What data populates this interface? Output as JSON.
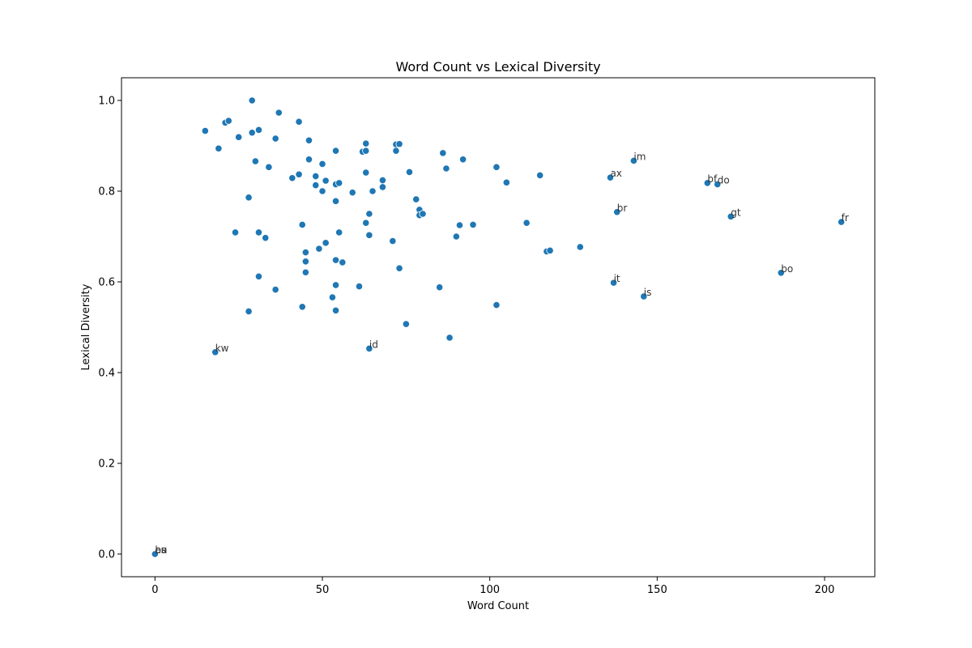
{
  "chart_data": {
    "type": "scatter",
    "title": "Word Count vs Lexical Diversity",
    "xlabel": "Word Count",
    "ylabel": "Lexical Diversity",
    "xlim": [
      -10,
      215
    ],
    "ylim": [
      -0.05,
      1.05
    ],
    "xticks": [
      0,
      50,
      100,
      150,
      200
    ],
    "yticks": [
      0.0,
      0.2,
      0.4,
      0.6,
      0.8,
      1.0
    ],
    "grid": false,
    "marker_color": "#1f77b4",
    "points": [
      {
        "x": 15,
        "y": 0.933
      },
      {
        "x": 19,
        "y": 0.894
      },
      {
        "x": 21,
        "y": 0.951
      },
      {
        "x": 22,
        "y": 0.955
      },
      {
        "x": 24,
        "y": 0.709
      },
      {
        "x": 25,
        "y": 0.919
      },
      {
        "x": 28,
        "y": 0.786
      },
      {
        "x": 28,
        "y": 0.535
      },
      {
        "x": 29,
        "y": 1.0
      },
      {
        "x": 29,
        "y": 0.929
      },
      {
        "x": 30,
        "y": 0.866
      },
      {
        "x": 31,
        "y": 0.935
      },
      {
        "x": 31,
        "y": 0.709
      },
      {
        "x": 31,
        "y": 0.612
      },
      {
        "x": 33,
        "y": 0.697
      },
      {
        "x": 34,
        "y": 0.853
      },
      {
        "x": 36,
        "y": 0.916
      },
      {
        "x": 36,
        "y": 0.583
      },
      {
        "x": 37,
        "y": 0.973
      },
      {
        "x": 41,
        "y": 0.829
      },
      {
        "x": 43,
        "y": 0.953
      },
      {
        "x": 43,
        "y": 0.837
      },
      {
        "x": 44,
        "y": 0.726
      },
      {
        "x": 44,
        "y": 0.545
      },
      {
        "x": 45,
        "y": 0.665
      },
      {
        "x": 45,
        "y": 0.645
      },
      {
        "x": 45,
        "y": 0.621
      },
      {
        "x": 46,
        "y": 0.912
      },
      {
        "x": 46,
        "y": 0.87
      },
      {
        "x": 48,
        "y": 0.833
      },
      {
        "x": 48,
        "y": 0.813
      },
      {
        "x": 49,
        "y": 0.673
      },
      {
        "x": 50,
        "y": 0.86
      },
      {
        "x": 50,
        "y": 0.8
      },
      {
        "x": 51,
        "y": 0.823
      },
      {
        "x": 51,
        "y": 0.686
      },
      {
        "x": 53,
        "y": 0.566
      },
      {
        "x": 54,
        "y": 0.889
      },
      {
        "x": 54,
        "y": 0.815
      },
      {
        "x": 54,
        "y": 0.778
      },
      {
        "x": 54,
        "y": 0.648
      },
      {
        "x": 54,
        "y": 0.593
      },
      {
        "x": 54,
        "y": 0.537
      },
      {
        "x": 55,
        "y": 0.818
      },
      {
        "x": 55,
        "y": 0.709
      },
      {
        "x": 56,
        "y": 0.643
      },
      {
        "x": 59,
        "y": 0.797
      },
      {
        "x": 61,
        "y": 0.59
      },
      {
        "x": 62,
        "y": 0.887
      },
      {
        "x": 63,
        "y": 0.905
      },
      {
        "x": 63,
        "y": 0.889
      },
      {
        "x": 63,
        "y": 0.841
      },
      {
        "x": 63,
        "y": 0.73
      },
      {
        "x": 64,
        "y": 0.75
      },
      {
        "x": 64,
        "y": 0.703
      },
      {
        "x": 64,
        "y": 0.453
      },
      {
        "x": 65,
        "y": 0.8
      },
      {
        "x": 68,
        "y": 0.824
      },
      {
        "x": 68,
        "y": 0.809
      },
      {
        "x": 71,
        "y": 0.69
      },
      {
        "x": 72,
        "y": 0.903
      },
      {
        "x": 72,
        "y": 0.889
      },
      {
        "x": 73,
        "y": 0.904
      },
      {
        "x": 73,
        "y": 0.63
      },
      {
        "x": 75,
        "y": 0.507
      },
      {
        "x": 76,
        "y": 0.842
      },
      {
        "x": 78,
        "y": 0.782
      },
      {
        "x": 79,
        "y": 0.759
      },
      {
        "x": 79,
        "y": 0.747
      },
      {
        "x": 80,
        "y": 0.75
      },
      {
        "x": 85,
        "y": 0.588
      },
      {
        "x": 86,
        "y": 0.884
      },
      {
        "x": 87,
        "y": 0.85
      },
      {
        "x": 88,
        "y": 0.477
      },
      {
        "x": 90,
        "y": 0.7
      },
      {
        "x": 91,
        "y": 0.725
      },
      {
        "x": 92,
        "y": 0.87
      },
      {
        "x": 95,
        "y": 0.726
      },
      {
        "x": 102,
        "y": 0.853
      },
      {
        "x": 102,
        "y": 0.549
      },
      {
        "x": 105,
        "y": 0.819
      },
      {
        "x": 111,
        "y": 0.73
      },
      {
        "x": 115,
        "y": 0.835
      },
      {
        "x": 117,
        "y": 0.667
      },
      {
        "x": 118,
        "y": 0.669
      },
      {
        "x": 127,
        "y": 0.677
      },
      {
        "x": 136,
        "y": 0.83,
        "label": "ax"
      },
      {
        "x": 137,
        "y": 0.598,
        "label": "it"
      },
      {
        "x": 138,
        "y": 0.754,
        "label": "br"
      },
      {
        "x": 143,
        "y": 0.867,
        "label": "im"
      },
      {
        "x": 146,
        "y": 0.568,
        "label": "is"
      },
      {
        "x": 165,
        "y": 0.818,
        "label": "bf"
      },
      {
        "x": 168,
        "y": 0.815,
        "label": "do"
      },
      {
        "x": 172,
        "y": 0.744,
        "label": "gt"
      },
      {
        "x": 187,
        "y": 0.62,
        "label": "bo"
      },
      {
        "x": 205,
        "y": 0.732,
        "label": "fr"
      },
      {
        "x": 18,
        "y": 0.445,
        "label": "kw"
      },
      {
        "x": 64,
        "y": 0.453,
        "label": "id"
      },
      {
        "x": 0,
        "y": 0.0,
        "label": "ba"
      },
      {
        "x": 0,
        "y": 0.0,
        "label": "es"
      },
      {
        "x": 0,
        "y": 0.0,
        "label": "eu"
      }
    ]
  }
}
